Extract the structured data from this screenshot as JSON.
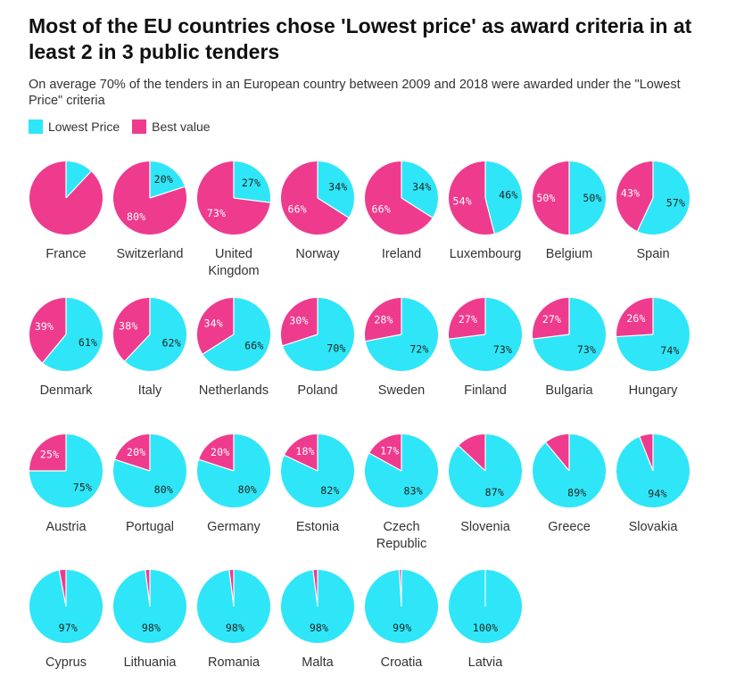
{
  "title": "Most of the EU countries chose 'Lowest price' as award criteria in at least 2 in 3 public tenders",
  "subtitle": "On average 70% of the tenders in an European country between 2009 and 2018 were awarded under the \"Lowest Price\" criteria",
  "colors": {
    "lowest_price": "#2ee6f7",
    "best_value": "#ee3b8e",
    "label_on_pink": "#ffffff",
    "label_on_cyan": "#222222"
  },
  "chart_data": {
    "type": "pie",
    "legend": [
      "Lowest Price",
      "Best value"
    ],
    "legend_placement": "top-left",
    "countries": [
      {
        "name": [
          "France"
        ],
        "lowest": 12,
        "best": 88,
        "label_lowest": "",
        "label_best": ""
      },
      {
        "name": [
          "Switzerland"
        ],
        "lowest": 20,
        "best": 80,
        "label_lowest": "20%",
        "label_best": "80%"
      },
      {
        "name": [
          "United",
          "Kingdom"
        ],
        "lowest": 27,
        "best": 73,
        "label_lowest": "27%",
        "label_best": "73%"
      },
      {
        "name": [
          "Norway"
        ],
        "lowest": 34,
        "best": 66,
        "label_lowest": "34%",
        "label_best": "66%"
      },
      {
        "name": [
          "Ireland"
        ],
        "lowest": 34,
        "best": 66,
        "label_lowest": "34%",
        "label_best": "66%"
      },
      {
        "name": [
          "Luxembourg"
        ],
        "lowest": 46,
        "best": 54,
        "label_lowest": "46%",
        "label_best": "54%"
      },
      {
        "name": [
          "Belgium"
        ],
        "lowest": 50,
        "best": 50,
        "label_lowest": "50%",
        "label_best": "50%"
      },
      {
        "name": [
          "Spain"
        ],
        "lowest": 57,
        "best": 43,
        "label_lowest": "57%",
        "label_best": "43%"
      },
      {
        "name": [
          "Denmark"
        ],
        "lowest": 61,
        "best": 39,
        "label_lowest": "61%",
        "label_best": "39%"
      },
      {
        "name": [
          "Italy"
        ],
        "lowest": 62,
        "best": 38,
        "label_lowest": "62%",
        "label_best": "38%"
      },
      {
        "name": [
          "Netherlands"
        ],
        "lowest": 66,
        "best": 34,
        "label_lowest": "66%",
        "label_best": "34%"
      },
      {
        "name": [
          "Poland"
        ],
        "lowest": 70,
        "best": 30,
        "label_lowest": "70%",
        "label_best": "30%"
      },
      {
        "name": [
          "Sweden"
        ],
        "lowest": 72,
        "best": 28,
        "label_lowest": "72%",
        "label_best": "28%"
      },
      {
        "name": [
          "Finland"
        ],
        "lowest": 73,
        "best": 27,
        "label_lowest": "73%",
        "label_best": "27%"
      },
      {
        "name": [
          "Bulgaria"
        ],
        "lowest": 73,
        "best": 27,
        "label_lowest": "73%",
        "label_best": "27%"
      },
      {
        "name": [
          "Hungary"
        ],
        "lowest": 74,
        "best": 26,
        "label_lowest": "74%",
        "label_best": "26%"
      },
      {
        "name": [
          "Austria"
        ],
        "lowest": 75,
        "best": 25,
        "label_lowest": "75%",
        "label_best": "25%"
      },
      {
        "name": [
          "Portugal"
        ],
        "lowest": 80,
        "best": 20,
        "label_lowest": "80%",
        "label_best": "20%"
      },
      {
        "name": [
          "Germany"
        ],
        "lowest": 80,
        "best": 20,
        "label_lowest": "80%",
        "label_best": "20%"
      },
      {
        "name": [
          "Estonia"
        ],
        "lowest": 82,
        "best": 18,
        "label_lowest": "82%",
        "label_best": "18%"
      },
      {
        "name": [
          "Czech",
          "Republic"
        ],
        "lowest": 83,
        "best": 17,
        "label_lowest": "83%",
        "label_best": "17%"
      },
      {
        "name": [
          "Slovenia"
        ],
        "lowest": 87,
        "best": 13,
        "label_lowest": "87%",
        "label_best": ""
      },
      {
        "name": [
          "Greece"
        ],
        "lowest": 89,
        "best": 11,
        "label_lowest": "89%",
        "label_best": ""
      },
      {
        "name": [
          "Slovakia"
        ],
        "lowest": 94,
        "best": 6,
        "label_lowest": "94%",
        "label_best": ""
      },
      {
        "name": [
          "Cyprus"
        ],
        "lowest": 97,
        "best": 3,
        "label_lowest": "97%",
        "label_best": ""
      },
      {
        "name": [
          "Lithuania"
        ],
        "lowest": 98,
        "best": 2,
        "label_lowest": "98%",
        "label_best": ""
      },
      {
        "name": [
          "Romania"
        ],
        "lowest": 98,
        "best": 2,
        "label_lowest": "98%",
        "label_best": ""
      },
      {
        "name": [
          "Malta"
        ],
        "lowest": 98,
        "best": 2,
        "label_lowest": "98%",
        "label_best": ""
      },
      {
        "name": [
          "Croatia"
        ],
        "lowest": 99,
        "best": 1,
        "label_lowest": "99%",
        "label_best": ""
      },
      {
        "name": [
          "Latvia"
        ],
        "lowest": 100,
        "best": 0,
        "label_lowest": "100%",
        "label_best": ""
      }
    ]
  }
}
